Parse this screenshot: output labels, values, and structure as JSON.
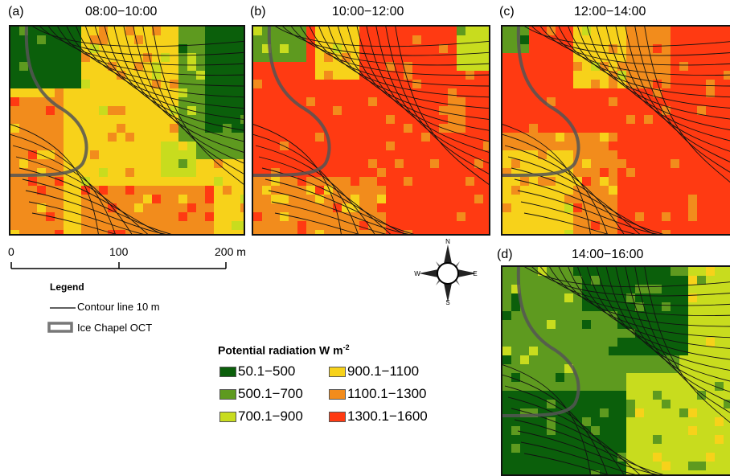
{
  "panels": [
    {
      "label": "(a)",
      "time": "08:00−10:00"
    },
    {
      "label": "(b)",
      "time": "10:00−12:00"
    },
    {
      "label": "(c)",
      "time": "12:00−14:00"
    },
    {
      "label": "(d)",
      "time": "14:00−16:00"
    }
  ],
  "scale": {
    "ticks": [
      "0",
      "100",
      "200 m"
    ]
  },
  "legend": {
    "title": "Legend",
    "contour": "Contour line 10 m",
    "chapel": "Ice Chapel OCT"
  },
  "radiation": {
    "title_main": "Potential radiation W m",
    "title_sup": "-2",
    "classes": [
      {
        "label": "50.1−500",
        "color": "#0b5f0b"
      },
      {
        "label": "500.1−700",
        "color": "#5e9a1f"
      },
      {
        "label": "700.1−900",
        "color": "#c8dc1e"
      },
      {
        "label": "900.1−1100",
        "color": "#f7d21a"
      },
      {
        "label": "1100.1−1300",
        "color": "#f28c1c"
      },
      {
        "label": "1300.1−1600",
        "color": "#ff3a12"
      }
    ]
  },
  "compass": {
    "n": "N",
    "s": "S",
    "e": "E",
    "w": "W"
  },
  "colors": {
    "contour": "#111111",
    "chapel": "#555555"
  }
}
